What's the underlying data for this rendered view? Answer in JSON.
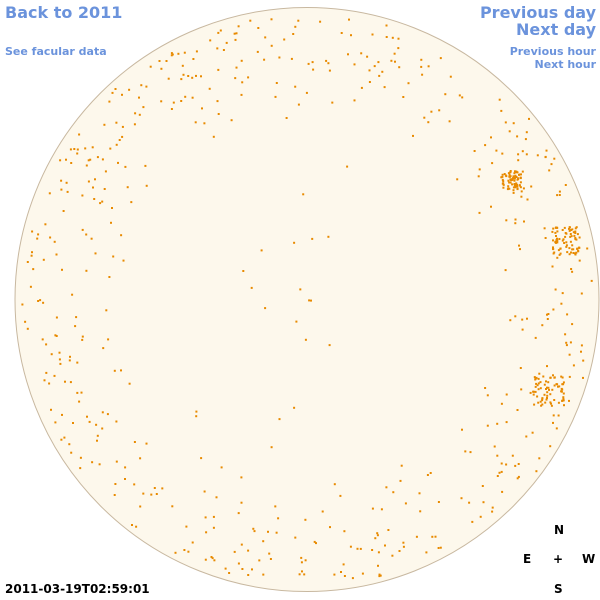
{
  "navigation": {
    "back_to_year": "Back to 2011",
    "see_facular": "See facular data",
    "previous_day": "Previous day",
    "next_day": "Next day",
    "previous_hour": "Previous hour",
    "next_hour": "Next hour"
  },
  "timestamp": "2011-03-19T02:59:01",
  "compass": {
    "north": "N",
    "east": "E",
    "center": "+",
    "west": "W",
    "south": "S"
  }
}
